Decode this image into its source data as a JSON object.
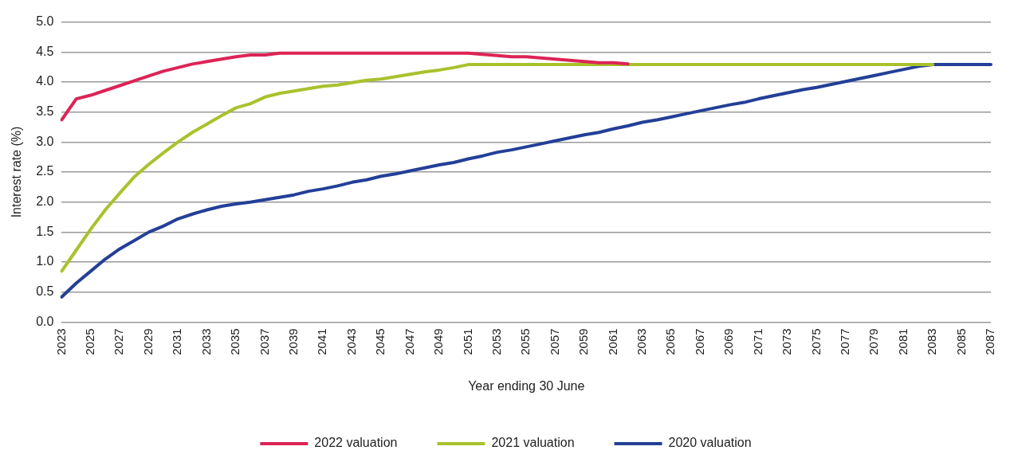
{
  "chart_data": {
    "type": "line",
    "xlabel": "Year ending 30 June",
    "ylabel": "Interest rate (%)",
    "categories": [
      "2023",
      null,
      "2025",
      null,
      "2027",
      null,
      "2029",
      null,
      "2031",
      null,
      "2033",
      null,
      "2035",
      null,
      "2037",
      null,
      "2039",
      null,
      "2041",
      null,
      "2043",
      null,
      "2045",
      null,
      "2047",
      null,
      "2049",
      null,
      "2051",
      null,
      "2053",
      null,
      "2055",
      null,
      "2057",
      null,
      "2059",
      null,
      "2061",
      null,
      "2063",
      null,
      "2065",
      null,
      "2067",
      null,
      "2069",
      null,
      "2071",
      null,
      "2073",
      null,
      "2075",
      null,
      "2077",
      null,
      "2079",
      null,
      "2081",
      null,
      "2083",
      null,
      "2085",
      null,
      "2087"
    ],
    "series": [
      {
        "name": "2022 valuation",
        "color": "#dc2456",
        "values": [
          3.37,
          3.72,
          3.78,
          3.86,
          3.94,
          4.02,
          4.1,
          4.18,
          4.24,
          4.3,
          4.34,
          4.38,
          4.42,
          4.45,
          4.45,
          4.48,
          4.48,
          4.48,
          4.48,
          4.48,
          4.48,
          4.48,
          4.48,
          4.48,
          4.48,
          4.48,
          4.48,
          4.48,
          4.48,
          4.46,
          4.44,
          4.42,
          4.42,
          4.4,
          4.38,
          4.36,
          4.34,
          4.32,
          4.32,
          4.3,
          null,
          null,
          null,
          null,
          null,
          null,
          null,
          null,
          null,
          null,
          null,
          null,
          null,
          null,
          null,
          null,
          null,
          null,
          null,
          null,
          null,
          null,
          null,
          null,
          null
        ]
      },
      {
        "name": "2021 valuation",
        "color": "#a8c22c",
        "values": [
          0.85,
          1.2,
          1.55,
          1.87,
          2.15,
          2.42,
          2.63,
          2.82,
          3.0,
          3.16,
          3.3,
          3.44,
          3.57,
          3.64,
          3.75,
          3.81,
          3.85,
          3.89,
          3.93,
          3.95,
          3.99,
          4.03,
          4.05,
          4.09,
          4.13,
          4.17,
          4.2,
          4.24,
          4.29,
          4.29,
          4.29,
          4.29,
          4.29,
          4.29,
          4.29,
          4.29,
          4.29,
          4.29,
          4.29,
          4.29,
          4.29,
          4.29,
          4.29,
          4.29,
          4.29,
          4.29,
          4.29,
          4.29,
          4.29,
          4.29,
          4.29,
          4.29,
          4.29,
          4.29,
          4.29,
          4.29,
          4.29,
          4.29,
          4.29,
          4.29,
          4.29,
          null,
          null,
          null,
          null
        ]
      },
      {
        "name": "2020 valuation",
        "color": "#233f97",
        "values": [
          0.42,
          0.65,
          0.85,
          1.05,
          1.22,
          1.36,
          1.5,
          1.6,
          1.72,
          1.8,
          1.87,
          1.93,
          1.97,
          2.0,
          2.04,
          2.08,
          2.12,
          2.18,
          2.22,
          2.27,
          2.33,
          2.37,
          2.43,
          2.47,
          2.52,
          2.57,
          2.62,
          2.66,
          2.72,
          2.77,
          2.83,
          2.87,
          2.92,
          2.97,
          3.02,
          3.07,
          3.12,
          3.16,
          3.22,
          3.27,
          3.33,
          3.37,
          3.42,
          3.47,
          3.52,
          3.57,
          3.62,
          3.66,
          3.72,
          3.77,
          3.82,
          3.87,
          3.91,
          3.96,
          4.01,
          4.06,
          4.11,
          4.16,
          4.21,
          4.26,
          4.29,
          4.29,
          4.29,
          4.29,
          4.29
        ]
      }
    ],
    "ylim": [
      0,
      5
    ],
    "yticks": [
      {
        "value": 0,
        "label": "0.0"
      },
      {
        "value": 0.5,
        "label": "0.5"
      },
      {
        "value": 1,
        "label": "1.0"
      },
      {
        "value": 1.5,
        "label": "1.5"
      },
      {
        "value": 2,
        "label": "2.0"
      },
      {
        "value": 2.5,
        "label": "2.5"
      },
      {
        "value": 3,
        "label": "3.0"
      },
      {
        "value": 3.5,
        "label": "3.5"
      },
      {
        "value": 4,
        "label": "4.0"
      },
      {
        "value": 4.5,
        "label": "4.5"
      },
      {
        "value": 5,
        "label": "5.0"
      }
    ],
    "grid": "y",
    "legend": "bottom",
    "marker": "none",
    "line_style": "solid"
  }
}
